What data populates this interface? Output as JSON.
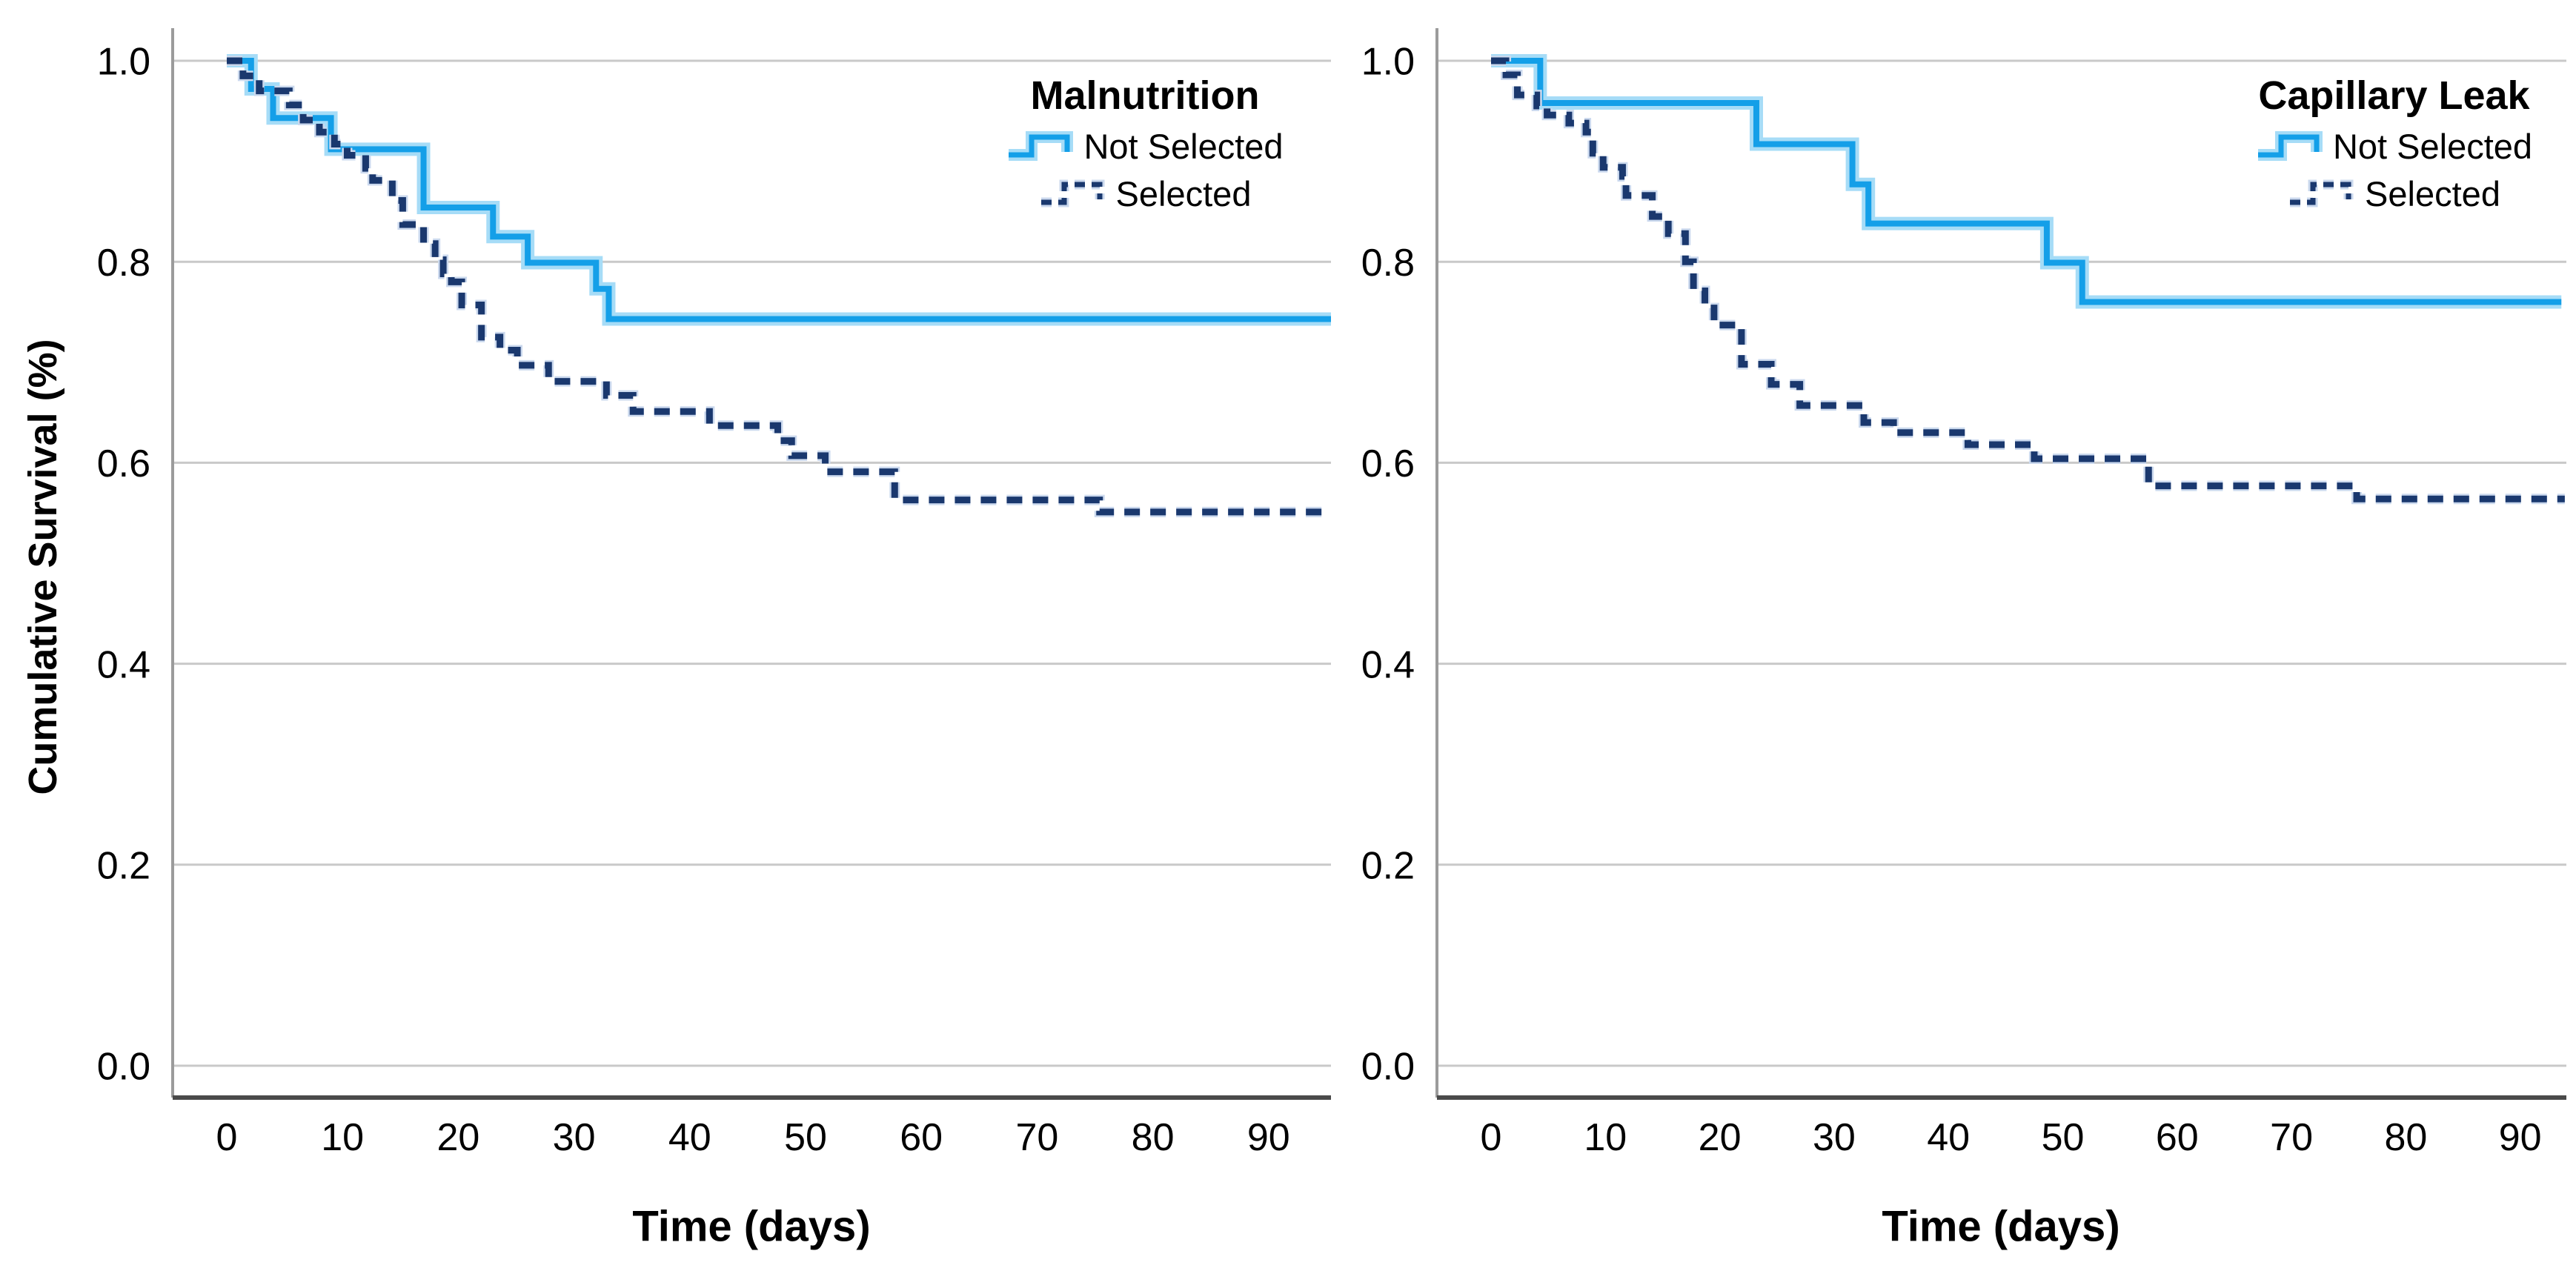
{
  "figure": {
    "ylabel": "Cumulative Survival (%)"
  },
  "colors": {
    "solid_line": "#149FE8",
    "solid_halo": "#A6DCF7",
    "dashed_line": "#1A386E",
    "dashed_halo": "#CBD9EE",
    "gridline": "#C9C9C9",
    "y_axis_line": "#9B9B9B",
    "x_axis_line": "#4A4A4A",
    "text": "#000000"
  },
  "chart_data": [
    {
      "type": "line",
      "subtype": "kaplan-meier-step",
      "title": "Malnutrition",
      "xlabel": "Time (days)",
      "ylabel": "Cumulative Survival (%)",
      "xlim": [
        -4.7,
        95.4
      ],
      "ylim": [
        -0.032,
        1.032
      ],
      "xticks": [
        0,
        10,
        20,
        30,
        40,
        50,
        60,
        70,
        80,
        90
      ],
      "ytick_labels": [
        "1.0",
        "0.8",
        "0.6",
        "0.4",
        "0.2",
        "0.0"
      ],
      "ytick_values": [
        1.0,
        0.8,
        0.6,
        0.4,
        0.2,
        0.0
      ],
      "grid": "horizontal",
      "legend_position": "top-right",
      "series": [
        {
          "name": "Not Selected",
          "style": "solid",
          "steps": [
            [
              0,
              1.0
            ],
            [
              2.1,
              0.972
            ],
            [
              4.0,
              0.943
            ],
            [
              9.0,
              0.912
            ],
            [
              17.0,
              0.854
            ],
            [
              23.0,
              0.825
            ],
            [
              26.0,
              0.799
            ],
            [
              31.9,
              0.773
            ],
            [
              33.0,
              0.743
            ]
          ],
          "end_x": 95.4
        },
        {
          "name": "Selected",
          "style": "dashed",
          "steps": [
            [
              0,
              1.0
            ],
            [
              1.4,
              0.985
            ],
            [
              2.8,
              0.97
            ],
            [
              5.4,
              0.956
            ],
            [
              6.6,
              0.941
            ],
            [
              8.0,
              0.929
            ],
            [
              9.3,
              0.917
            ],
            [
              10.4,
              0.906
            ],
            [
              12.0,
              0.893
            ],
            [
              12.6,
              0.881
            ],
            [
              14.3,
              0.861
            ],
            [
              15.2,
              0.837
            ],
            [
              17.0,
              0.818
            ],
            [
              18.0,
              0.802
            ],
            [
              18.7,
              0.788
            ],
            [
              19.4,
              0.78
            ],
            [
              20.3,
              0.757
            ],
            [
              22.0,
              0.725
            ],
            [
              23.6,
              0.712
            ],
            [
              25.1,
              0.697
            ],
            [
              27.8,
              0.681
            ],
            [
              32.8,
              0.667
            ],
            [
              35.1,
              0.651
            ],
            [
              41.7,
              0.637
            ],
            [
              47.6,
              0.622
            ],
            [
              48.8,
              0.607
            ],
            [
              51.7,
              0.591
            ],
            [
              57.7,
              0.563
            ],
            [
              75.4,
              0.551
            ]
          ],
          "end_x": 95.4
        }
      ]
    },
    {
      "type": "line",
      "subtype": "kaplan-meier-step",
      "title": "Capillary Leak",
      "xlabel": "Time (days)",
      "ylabel": "Cumulative Survival (%)",
      "xlim": [
        -4.9,
        94.0
      ],
      "ylim": [
        -0.032,
        1.032
      ],
      "xticks": [
        0,
        10,
        20,
        30,
        40,
        50,
        60,
        70,
        80,
        90
      ],
      "ytick_labels": [
        "1.0",
        "0.8",
        "0.6",
        "0.4",
        "0.2",
        "0.0"
      ],
      "ytick_values": [
        1.0,
        0.8,
        0.6,
        0.4,
        0.2,
        0.0
      ],
      "grid": "horizontal",
      "legend_position": "top-right",
      "series": [
        {
          "name": "Not Selected",
          "style": "solid",
          "steps": [
            [
              0,
              1.0
            ],
            [
              4.3,
              0.958
            ],
            [
              23.2,
              0.917
            ],
            [
              31.6,
              0.877
            ],
            [
              33.0,
              0.838
            ],
            [
              48.6,
              0.799
            ],
            [
              51.7,
              0.76
            ]
          ],
          "end_x": 93.6
        },
        {
          "name": "Selected",
          "style": "dashed",
          "steps": [
            [
              0,
              1.0
            ],
            [
              1.3,
              0.986
            ],
            [
              2.3,
              0.966
            ],
            [
              4.0,
              0.955
            ],
            [
              4.9,
              0.946
            ],
            [
              6.8,
              0.938
            ],
            [
              8.3,
              0.929
            ],
            [
              8.9,
              0.908
            ],
            [
              9.8,
              0.894
            ],
            [
              11.5,
              0.885
            ],
            [
              11.8,
              0.866
            ],
            [
              14.1,
              0.845
            ],
            [
              15.5,
              0.828
            ],
            [
              17.0,
              0.8
            ],
            [
              17.7,
              0.771
            ],
            [
              18.7,
              0.754
            ],
            [
              19.5,
              0.737
            ],
            [
              21.9,
              0.698
            ],
            [
              24.5,
              0.678
            ],
            [
              27.0,
              0.657
            ],
            [
              32.6,
              0.64
            ],
            [
              35.2,
              0.63
            ],
            [
              41.7,
              0.618
            ],
            [
              47.5,
              0.604
            ],
            [
              57.5,
              0.577
            ],
            [
              75.7,
              0.564
            ]
          ],
          "end_x": 93.9
        }
      ]
    }
  ]
}
